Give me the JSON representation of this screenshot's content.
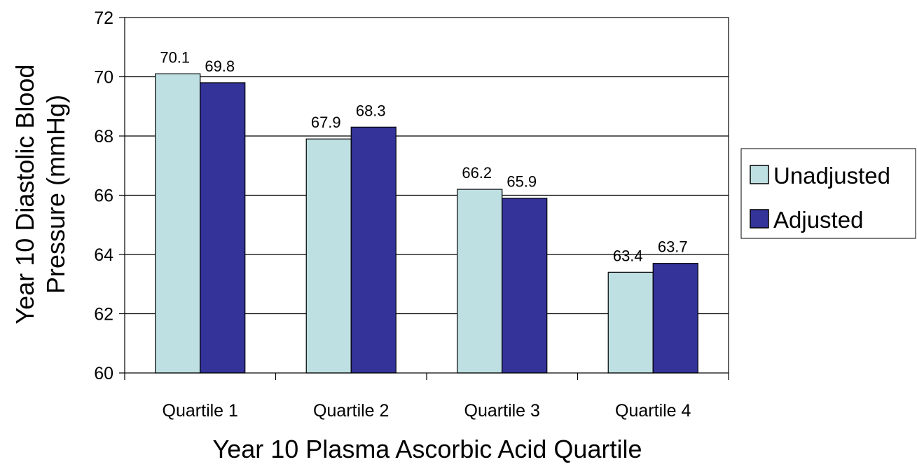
{
  "chart_data": {
    "type": "bar",
    "title": "",
    "xlabel": "Year 10 Plasma Ascorbic Acid Quartile",
    "ylabel": [
      "Year 10 Diastolic Blood",
      "Pressure (mmHg)"
    ],
    "ylim": [
      60,
      72
    ],
    "yticks": [
      60,
      62,
      64,
      66,
      68,
      70,
      72
    ],
    "categories": [
      "Quartile 1",
      "Quartile 2",
      "Quartile 3",
      "Quartile 4"
    ],
    "grid": true,
    "legend_position": "right",
    "series": [
      {
        "name": "Unadjusted",
        "color": "#bfe0e3",
        "values": [
          70.1,
          67.9,
          66.2,
          63.4
        ]
      },
      {
        "name": "Adjusted",
        "color": "#333399",
        "values": [
          69.8,
          68.3,
          65.9,
          63.7
        ]
      }
    ]
  }
}
